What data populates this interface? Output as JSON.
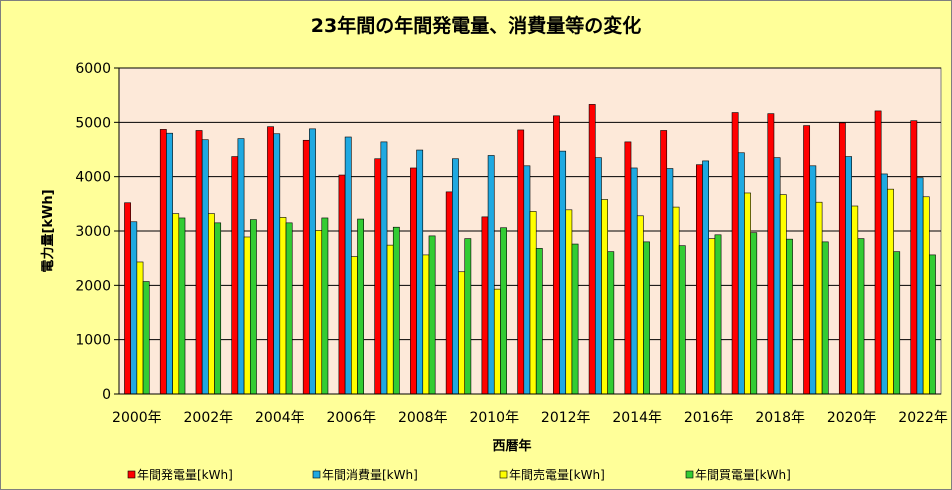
{
  "chart_data": {
    "type": "bar",
    "title": "23年間の年間発電量、消費量等の変化",
    "xlabel": "西暦年",
    "ylabel": "電力量[kWh]",
    "ylim": [
      0,
      6000
    ],
    "yticks": [
      0,
      1000,
      2000,
      3000,
      4000,
      5000,
      6000
    ],
    "categories": [
      "2000年",
      "2001年",
      "2002年",
      "2003年",
      "2004年",
      "2005年",
      "2006年",
      "2007年",
      "2008年",
      "2009年",
      "2010年",
      "2011年",
      "2012年",
      "2013年",
      "2014年",
      "2015年",
      "2016年",
      "2017年",
      "2018年",
      "2019年",
      "2020年",
      "2021年",
      "2022年"
    ],
    "category_tick_labels": [
      "2000年",
      "",
      "2002年",
      "",
      "2004年",
      "",
      "2006年",
      "",
      "2008年",
      "",
      "2010年",
      "",
      "2012年",
      "",
      "2014年",
      "",
      "2016年",
      "",
      "2018年",
      "",
      "2020年",
      "",
      "2022年"
    ],
    "grid": "horizontal",
    "legend_position": "bottom",
    "plot_background": "#fde9d9",
    "chart_background": "#ffff99",
    "series": [
      {
        "name": "年間発電量[kWh]",
        "color": "#ff0000",
        "values": [
          3520,
          4870,
          4850,
          4370,
          4920,
          4670,
          4030,
          4330,
          4160,
          3720,
          3260,
          4860,
          5120,
          5330,
          4640,
          4850,
          4220,
          5180,
          5160,
          4940,
          4990,
          5210,
          5030
        ]
      },
      {
        "name": "年間消費量[kWh]",
        "color": "#1fa9e1",
        "values": [
          3170,
          4800,
          4680,
          4700,
          4790,
          4880,
          4730,
          4640,
          4490,
          4330,
          4390,
          4200,
          4470,
          4350,
          4160,
          4150,
          4290,
          4440,
          4350,
          4200,
          4370,
          4050,
          3980
        ]
      },
      {
        "name": "年間売電量[kWh]",
        "color": "#ffff00",
        "values": [
          2430,
          3320,
          3320,
          2890,
          3250,
          3010,
          2530,
          2740,
          2560,
          2250,
          1930,
          3360,
          3390,
          3580,
          3280,
          3440,
          2860,
          3700,
          3670,
          3530,
          3460,
          3770,
          3630
        ]
      },
      {
        "name": "年間買電量[kWh]",
        "color": "#33cc33",
        "values": [
          2070,
          3240,
          3150,
          3210,
          3150,
          3240,
          3220,
          3070,
          2910,
          2860,
          3060,
          2680,
          2760,
          2620,
          2800,
          2730,
          2930,
          2970,
          2850,
          2800,
          2860,
          2620,
          2560
        ]
      }
    ]
  }
}
